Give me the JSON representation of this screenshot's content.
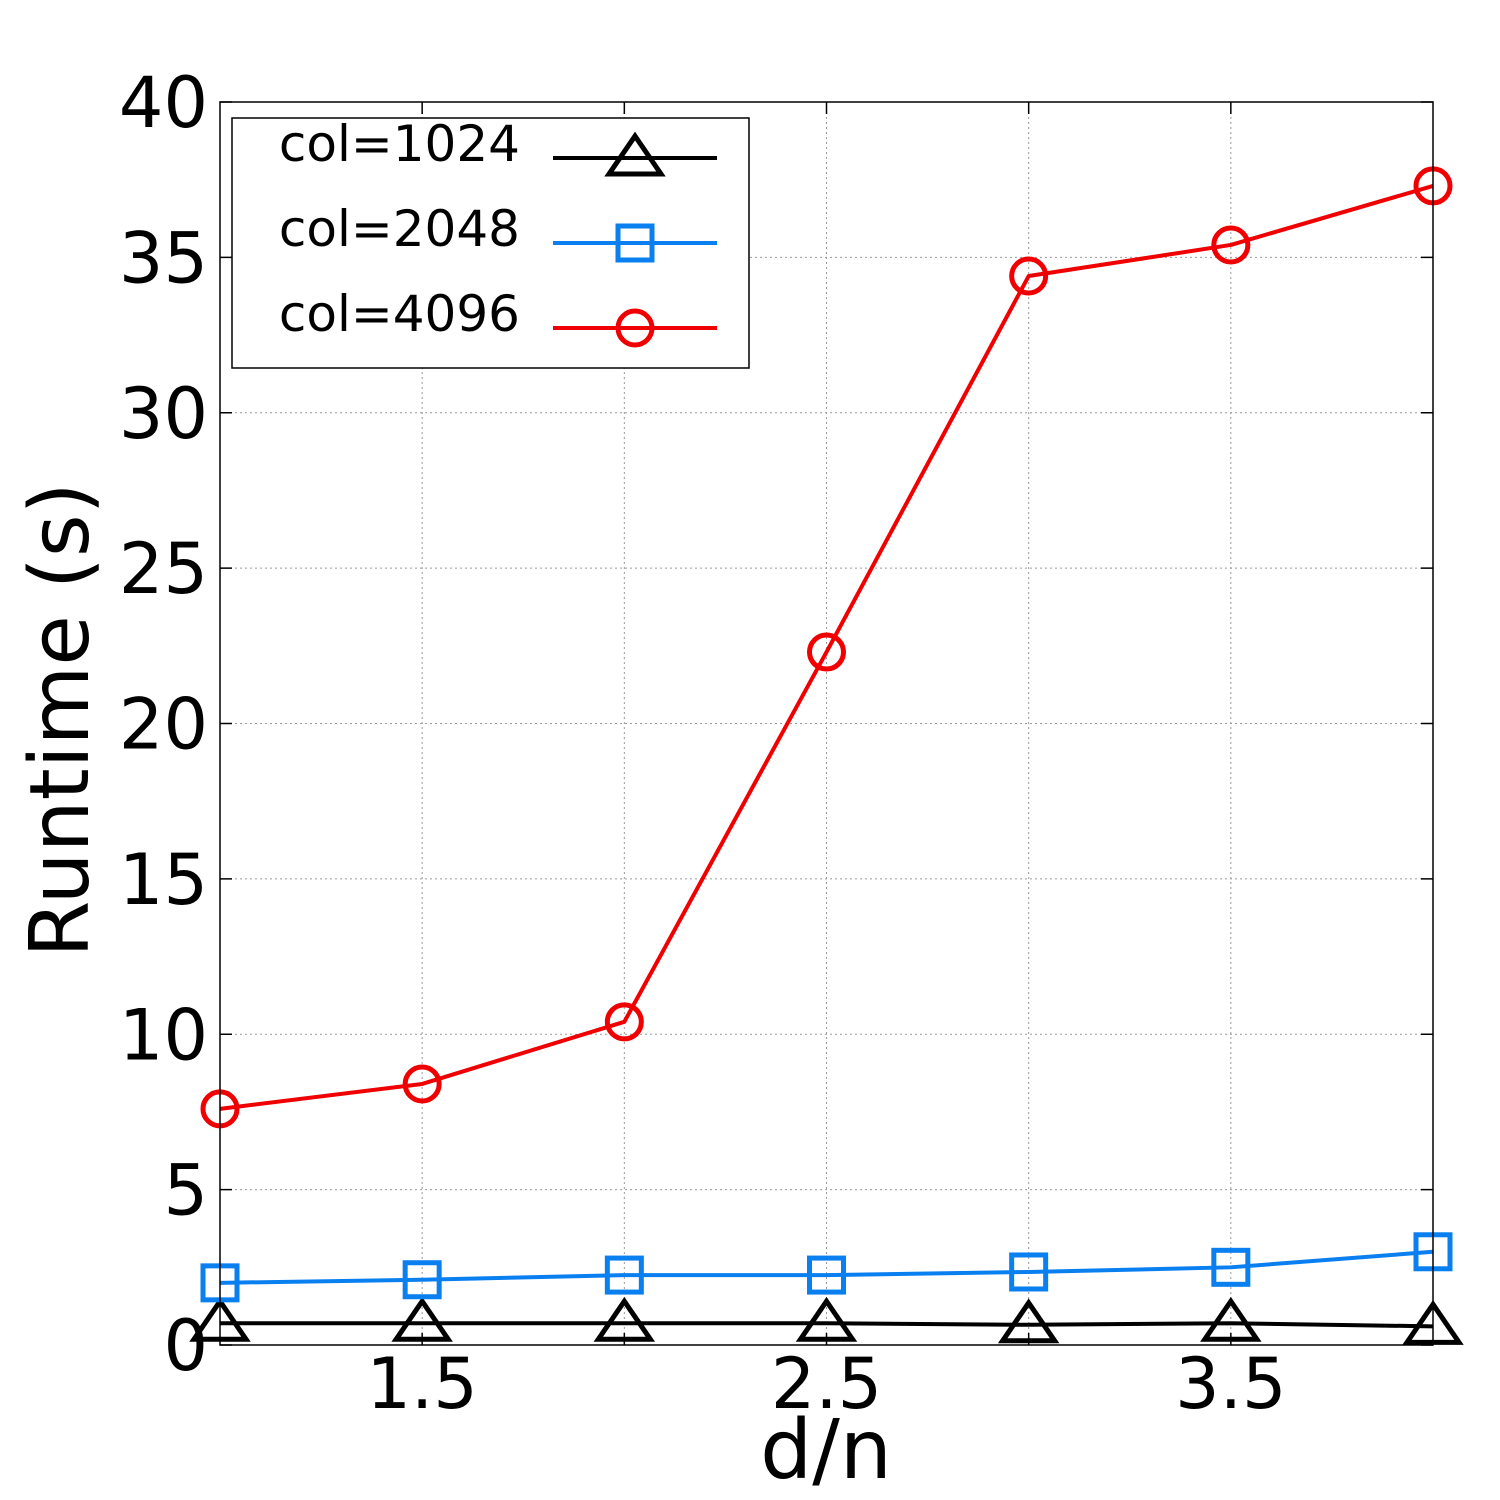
{
  "chart_data": {
    "type": "line",
    "title": "",
    "xlabel": "d/n",
    "ylabel": "Runtime (s)",
    "xlim": [
      1,
      4
    ],
    "ylim": [
      0,
      40
    ],
    "x_ticks": [
      1.5,
      2.5,
      3.5
    ],
    "x_tick_labels": [
      "1.5",
      "2.5",
      "3.5"
    ],
    "y_ticks": [
      0,
      5,
      10,
      15,
      20,
      25,
      30,
      35,
      40
    ],
    "y_tick_labels": [
      "0",
      "5",
      "10",
      "15",
      "20",
      "25",
      "30",
      "35",
      "40"
    ],
    "grid": true,
    "legend_position": "top-left",
    "x": [
      1,
      1.5,
      2,
      2.5,
      3,
      3.5,
      4
    ],
    "series": [
      {
        "name": "col=1024",
        "color": "#000000",
        "marker": "triangle",
        "values": [
          0.7,
          0.7,
          0.7,
          0.7,
          0.65,
          0.7,
          0.6
        ]
      },
      {
        "name": "col=2048",
        "color": "#0a7ff0",
        "marker": "square",
        "values": [
          2.0,
          2.1,
          2.25,
          2.25,
          2.35,
          2.5,
          3.0
        ]
      },
      {
        "name": "col=4096",
        "color": "#f00000",
        "marker": "circle",
        "values": [
          7.6,
          8.4,
          10.4,
          22.3,
          34.4,
          35.4,
          37.3
        ]
      }
    ]
  }
}
